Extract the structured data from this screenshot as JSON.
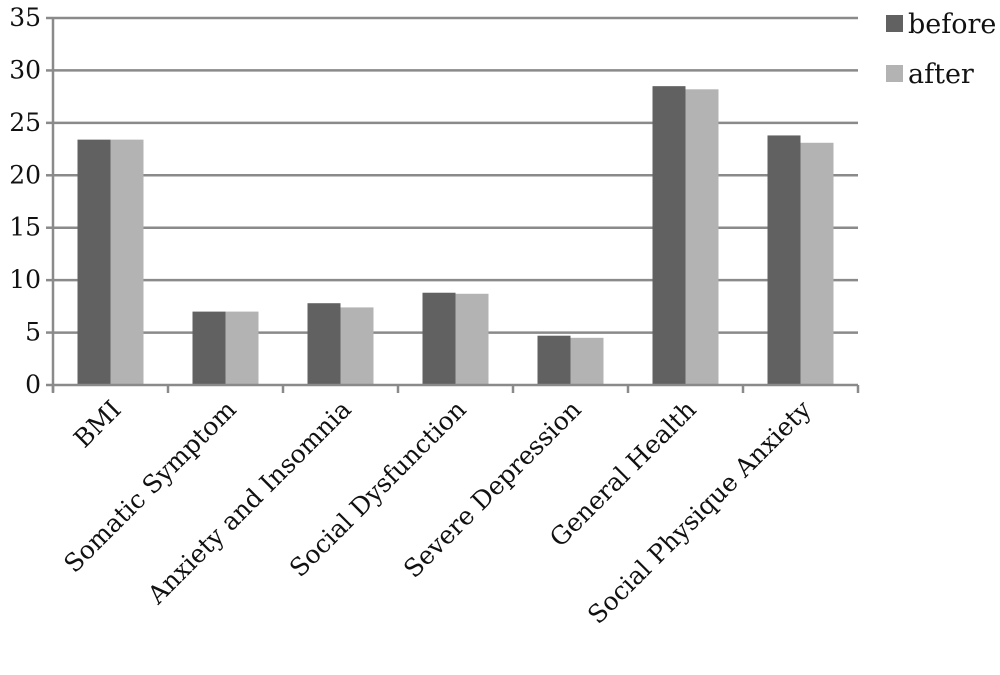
{
  "chart_data": {
    "type": "bar",
    "categories": [
      "BMI",
      "Somatic Symptom",
      "Anxiety and Insomnia",
      "Social Dysfunction",
      "Severe Depression",
      "General Health",
      "Social Physique Anxiety"
    ],
    "series": [
      {
        "name": "before",
        "values": [
          23.4,
          7.0,
          7.8,
          8.8,
          4.7,
          28.5,
          23.8
        ],
        "color": "#616161"
      },
      {
        "name": "after",
        "values": [
          23.4,
          7.0,
          7.4,
          8.7,
          4.5,
          28.2,
          23.1
        ],
        "color": "#b3b3b3"
      }
    ],
    "ylim": [
      0,
      35
    ],
    "yticks": [
      "0",
      "5",
      "10",
      "15",
      "20",
      "25",
      "30",
      "35"
    ],
    "grid": true,
    "legend": "right"
  }
}
